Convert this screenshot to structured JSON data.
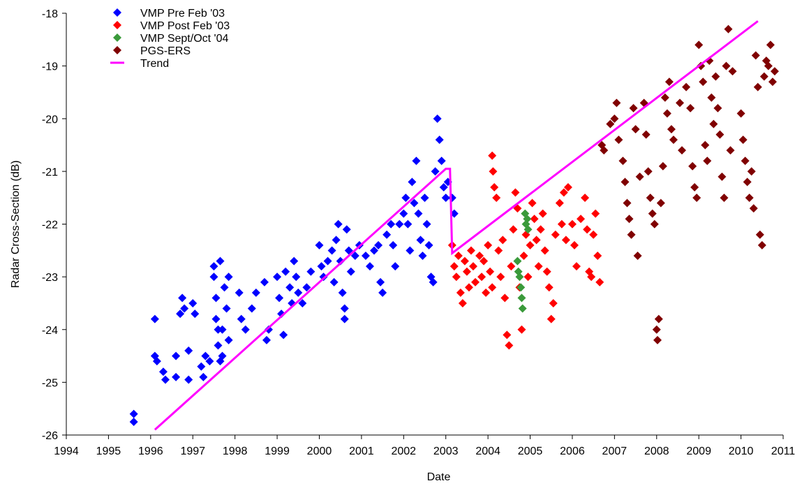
{
  "chart_data": {
    "type": "scatter",
    "xlabel": "Date",
    "ylabel": "Radar Cross-Section (dB)",
    "xlim": [
      1994,
      2011
    ],
    "ylim": [
      -26,
      -18
    ],
    "x_ticks": [
      "1994",
      "1995",
      "1996",
      "1997",
      "1998",
      "1999",
      "2000",
      "2001",
      "2002",
      "2003",
      "2004",
      "2005",
      "2006",
      "2007",
      "2008",
      "2009",
      "2010",
      "2011"
    ],
    "y_ticks": [
      "-18",
      "-19",
      "-20",
      "-21",
      "-22",
      "-23",
      "-24",
      "-25",
      "-26"
    ],
    "grid": false,
    "legend_position": "top-left",
    "series": [
      {
        "name": "VMP Pre Feb '03",
        "color": "#0000ff",
        "marker": "diamond",
        "points": [
          [
            1995.6,
            -25.6
          ],
          [
            1995.6,
            -25.75
          ],
          [
            1996.1,
            -23.8
          ],
          [
            1996.1,
            -24.5
          ],
          [
            1996.15,
            -24.6
          ],
          [
            1996.3,
            -24.8
          ],
          [
            1996.35,
            -24.95
          ],
          [
            1996.6,
            -24.9
          ],
          [
            1996.6,
            -24.5
          ],
          [
            1996.7,
            -23.7
          ],
          [
            1996.75,
            -23.4
          ],
          [
            1996.8,
            -23.6
          ],
          [
            1996.9,
            -24.4
          ],
          [
            1996.9,
            -24.95
          ],
          [
            1997.0,
            -23.5
          ],
          [
            1997.05,
            -23.7
          ],
          [
            1997.2,
            -24.7
          ],
          [
            1997.25,
            -24.9
          ],
          [
            1997.3,
            -24.5
          ],
          [
            1997.4,
            -24.6
          ],
          [
            1997.5,
            -22.8
          ],
          [
            1997.5,
            -23.0
          ],
          [
            1997.55,
            -23.4
          ],
          [
            1997.55,
            -23.8
          ],
          [
            1997.6,
            -24.0
          ],
          [
            1997.6,
            -24.3
          ],
          [
            1997.65,
            -24.6
          ],
          [
            1997.65,
            -22.7
          ],
          [
            1997.7,
            -24.5
          ],
          [
            1997.7,
            -24.0
          ],
          [
            1997.75,
            -23.2
          ],
          [
            1997.8,
            -23.6
          ],
          [
            1997.85,
            -23.0
          ],
          [
            1997.85,
            -24.2
          ],
          [
            1998.1,
            -23.3
          ],
          [
            1998.15,
            -23.8
          ],
          [
            1998.25,
            -24.0
          ],
          [
            1998.4,
            -23.6
          ],
          [
            1998.5,
            -23.3
          ],
          [
            1998.7,
            -23.1
          ],
          [
            1998.75,
            -24.2
          ],
          [
            1998.8,
            -24.0
          ],
          [
            1999.0,
            -23.0
          ],
          [
            1999.05,
            -23.4
          ],
          [
            1999.1,
            -23.7
          ],
          [
            1999.15,
            -24.1
          ],
          [
            1999.2,
            -22.9
          ],
          [
            1999.3,
            -23.2
          ],
          [
            1999.35,
            -23.5
          ],
          [
            1999.4,
            -22.7
          ],
          [
            1999.45,
            -23.0
          ],
          [
            1999.5,
            -23.3
          ],
          [
            1999.6,
            -23.5
          ],
          [
            1999.7,
            -23.2
          ],
          [
            1999.8,
            -22.9
          ],
          [
            2000.0,
            -22.4
          ],
          [
            2000.05,
            -22.8
          ],
          [
            2000.1,
            -23.0
          ],
          [
            2000.2,
            -22.7
          ],
          [
            2000.3,
            -22.5
          ],
          [
            2000.35,
            -23.1
          ],
          [
            2000.4,
            -22.3
          ],
          [
            2000.45,
            -22.0
          ],
          [
            2000.5,
            -22.7
          ],
          [
            2000.55,
            -23.3
          ],
          [
            2000.6,
            -23.6
          ],
          [
            2000.6,
            -23.8
          ],
          [
            2000.65,
            -22.1
          ],
          [
            2000.7,
            -22.5
          ],
          [
            2000.75,
            -22.9
          ],
          [
            2000.85,
            -22.6
          ],
          [
            2000.95,
            -22.4
          ],
          [
            2001.1,
            -22.6
          ],
          [
            2001.2,
            -22.8
          ],
          [
            2001.3,
            -22.5
          ],
          [
            2001.4,
            -22.4
          ],
          [
            2001.45,
            -23.1
          ],
          [
            2001.5,
            -23.3
          ],
          [
            2001.6,
            -22.2
          ],
          [
            2001.7,
            -22.0
          ],
          [
            2001.75,
            -22.4
          ],
          [
            2001.8,
            -22.8
          ],
          [
            2001.9,
            -22.0
          ],
          [
            2002.0,
            -21.8
          ],
          [
            2002.05,
            -21.5
          ],
          [
            2002.1,
            -22.0
          ],
          [
            2002.15,
            -22.5
          ],
          [
            2002.2,
            -21.2
          ],
          [
            2002.25,
            -21.6
          ],
          [
            2002.3,
            -20.8
          ],
          [
            2002.35,
            -21.8
          ],
          [
            2002.4,
            -22.3
          ],
          [
            2002.45,
            -22.6
          ],
          [
            2002.5,
            -21.5
          ],
          [
            2002.55,
            -22.0
          ],
          [
            2002.6,
            -22.4
          ],
          [
            2002.65,
            -23.0
          ],
          [
            2002.7,
            -23.1
          ],
          [
            2002.75,
            -21.0
          ],
          [
            2002.8,
            -20.0
          ],
          [
            2002.85,
            -20.4
          ],
          [
            2002.9,
            -20.8
          ],
          [
            2002.95,
            -21.3
          ],
          [
            2003.0,
            -21.5
          ],
          [
            2003.05,
            -21.2
          ],
          [
            2003.15,
            -21.5
          ],
          [
            2003.2,
            -21.8
          ]
        ]
      },
      {
        "name": "VMP Post Feb '03",
        "color": "#ff0000",
        "marker": "diamond",
        "points": [
          [
            2003.15,
            -22.4
          ],
          [
            2003.2,
            -22.8
          ],
          [
            2003.25,
            -23.0
          ],
          [
            2003.3,
            -22.6
          ],
          [
            2003.35,
            -23.3
          ],
          [
            2003.4,
            -23.5
          ],
          [
            2003.45,
            -22.7
          ],
          [
            2003.5,
            -22.9
          ],
          [
            2003.55,
            -23.2
          ],
          [
            2003.6,
            -22.5
          ],
          [
            2003.65,
            -22.8
          ],
          [
            2003.7,
            -23.1
          ],
          [
            2003.8,
            -22.6
          ],
          [
            2003.85,
            -23.0
          ],
          [
            2003.9,
            -22.7
          ],
          [
            2003.95,
            -23.3
          ],
          [
            2004.0,
            -22.4
          ],
          [
            2004.05,
            -22.9
          ],
          [
            2004.1,
            -23.2
          ],
          [
            2004.1,
            -20.7
          ],
          [
            2004.12,
            -21.0
          ],
          [
            2004.15,
            -21.3
          ],
          [
            2004.2,
            -21.5
          ],
          [
            2004.25,
            -22.5
          ],
          [
            2004.3,
            -23.0
          ],
          [
            2004.35,
            -22.3
          ],
          [
            2004.4,
            -23.4
          ],
          [
            2004.45,
            -24.1
          ],
          [
            2004.5,
            -24.3
          ],
          [
            2004.55,
            -22.8
          ],
          [
            2004.6,
            -22.1
          ],
          [
            2004.65,
            -21.4
          ],
          [
            2004.7,
            -21.7
          ],
          [
            2004.75,
            -23.2
          ],
          [
            2004.8,
            -24.0
          ],
          [
            2004.85,
            -22.6
          ],
          [
            2004.9,
            -22.2
          ],
          [
            2004.95,
            -23.0
          ],
          [
            2005.0,
            -22.4
          ],
          [
            2005.05,
            -21.6
          ],
          [
            2005.1,
            -21.9
          ],
          [
            2005.15,
            -22.3
          ],
          [
            2005.2,
            -22.8
          ],
          [
            2005.25,
            -22.1
          ],
          [
            2005.3,
            -21.8
          ],
          [
            2005.35,
            -22.5
          ],
          [
            2005.4,
            -22.9
          ],
          [
            2005.45,
            -23.2
          ],
          [
            2005.5,
            -23.8
          ],
          [
            2005.55,
            -23.5
          ],
          [
            2005.6,
            -22.2
          ],
          [
            2005.7,
            -21.6
          ],
          [
            2005.75,
            -22.0
          ],
          [
            2005.8,
            -21.4
          ],
          [
            2005.85,
            -22.3
          ],
          [
            2005.9,
            -21.3
          ],
          [
            2006.0,
            -22.0
          ],
          [
            2006.05,
            -22.4
          ],
          [
            2006.1,
            -22.8
          ],
          [
            2006.2,
            -21.9
          ],
          [
            2006.3,
            -21.5
          ],
          [
            2006.35,
            -22.1
          ],
          [
            2006.4,
            -22.9
          ],
          [
            2006.45,
            -23.0
          ],
          [
            2006.5,
            -22.2
          ],
          [
            2006.55,
            -21.8
          ],
          [
            2006.6,
            -22.6
          ],
          [
            2006.65,
            -23.1
          ]
        ]
      },
      {
        "name": "VMP Sept/Oct '04",
        "color": "#3a9a3a",
        "marker": "diamond",
        "points": [
          [
            2004.7,
            -22.7
          ],
          [
            2004.72,
            -22.9
          ],
          [
            2004.75,
            -23.0
          ],
          [
            2004.78,
            -23.2
          ],
          [
            2004.8,
            -23.4
          ],
          [
            2004.82,
            -23.6
          ],
          [
            2004.88,
            -21.8
          ],
          [
            2004.9,
            -22.0
          ],
          [
            2004.93,
            -21.9
          ],
          [
            2004.95,
            -22.1
          ]
        ]
      },
      {
        "name": "PGS-ERS",
        "color": "#800000",
        "marker": "diamond",
        "points": [
          [
            2006.7,
            -20.5
          ],
          [
            2006.75,
            -20.6
          ],
          [
            2006.9,
            -20.1
          ],
          [
            2007.0,
            -20.0
          ],
          [
            2007.05,
            -19.7
          ],
          [
            2007.1,
            -20.4
          ],
          [
            2007.2,
            -20.8
          ],
          [
            2007.25,
            -21.2
          ],
          [
            2007.3,
            -21.6
          ],
          [
            2007.35,
            -21.9
          ],
          [
            2007.4,
            -22.2
          ],
          [
            2007.45,
            -19.8
          ],
          [
            2007.5,
            -20.2
          ],
          [
            2007.55,
            -22.6
          ],
          [
            2007.6,
            -21.1
          ],
          [
            2007.7,
            -19.7
          ],
          [
            2007.75,
            -20.3
          ],
          [
            2007.8,
            -21.0
          ],
          [
            2007.85,
            -21.5
          ],
          [
            2007.9,
            -21.8
          ],
          [
            2007.95,
            -22.0
          ],
          [
            2008.0,
            -24.0
          ],
          [
            2008.02,
            -24.2
          ],
          [
            2008.05,
            -23.8
          ],
          [
            2008.1,
            -21.6
          ],
          [
            2008.15,
            -20.9
          ],
          [
            2008.2,
            -19.6
          ],
          [
            2008.25,
            -19.9
          ],
          [
            2008.3,
            -19.3
          ],
          [
            2008.35,
            -20.2
          ],
          [
            2008.4,
            -20.4
          ],
          [
            2008.55,
            -19.7
          ],
          [
            2008.6,
            -20.6
          ],
          [
            2008.7,
            -19.4
          ],
          [
            2008.8,
            -19.8
          ],
          [
            2008.85,
            -20.9
          ],
          [
            2008.9,
            -21.3
          ],
          [
            2008.95,
            -21.5
          ],
          [
            2009.0,
            -18.6
          ],
          [
            2009.05,
            -19.0
          ],
          [
            2009.1,
            -19.3
          ],
          [
            2009.15,
            -20.5
          ],
          [
            2009.2,
            -20.8
          ],
          [
            2009.25,
            -18.9
          ],
          [
            2009.3,
            -19.6
          ],
          [
            2009.35,
            -20.1
          ],
          [
            2009.4,
            -19.2
          ],
          [
            2009.45,
            -19.8
          ],
          [
            2009.5,
            -20.3
          ],
          [
            2009.55,
            -21.1
          ],
          [
            2009.6,
            -21.5
          ],
          [
            2009.65,
            -19.0
          ],
          [
            2009.7,
            -18.3
          ],
          [
            2009.75,
            -20.6
          ],
          [
            2009.8,
            -19.1
          ],
          [
            2010.0,
            -19.9
          ],
          [
            2010.05,
            -20.4
          ],
          [
            2010.1,
            -20.8
          ],
          [
            2010.15,
            -21.2
          ],
          [
            2010.2,
            -21.5
          ],
          [
            2010.25,
            -21.0
          ],
          [
            2010.3,
            -21.7
          ],
          [
            2010.35,
            -18.8
          ],
          [
            2010.4,
            -19.4
          ],
          [
            2010.45,
            -22.2
          ],
          [
            2010.5,
            -22.4
          ],
          [
            2010.55,
            -19.2
          ],
          [
            2010.6,
            -18.9
          ],
          [
            2010.65,
            -19.0
          ],
          [
            2010.7,
            -18.6
          ],
          [
            2010.75,
            -19.3
          ],
          [
            2010.8,
            -19.1
          ]
        ]
      }
    ],
    "trend": {
      "name": "Trend",
      "color": "#ff00ff",
      "points": [
        [
          1996.1,
          -25.9
        ],
        [
          2003.0,
          -20.95
        ],
        [
          2003.1,
          -20.95
        ],
        [
          2003.15,
          -22.55
        ],
        [
          2010.4,
          -18.15
        ]
      ]
    }
  }
}
